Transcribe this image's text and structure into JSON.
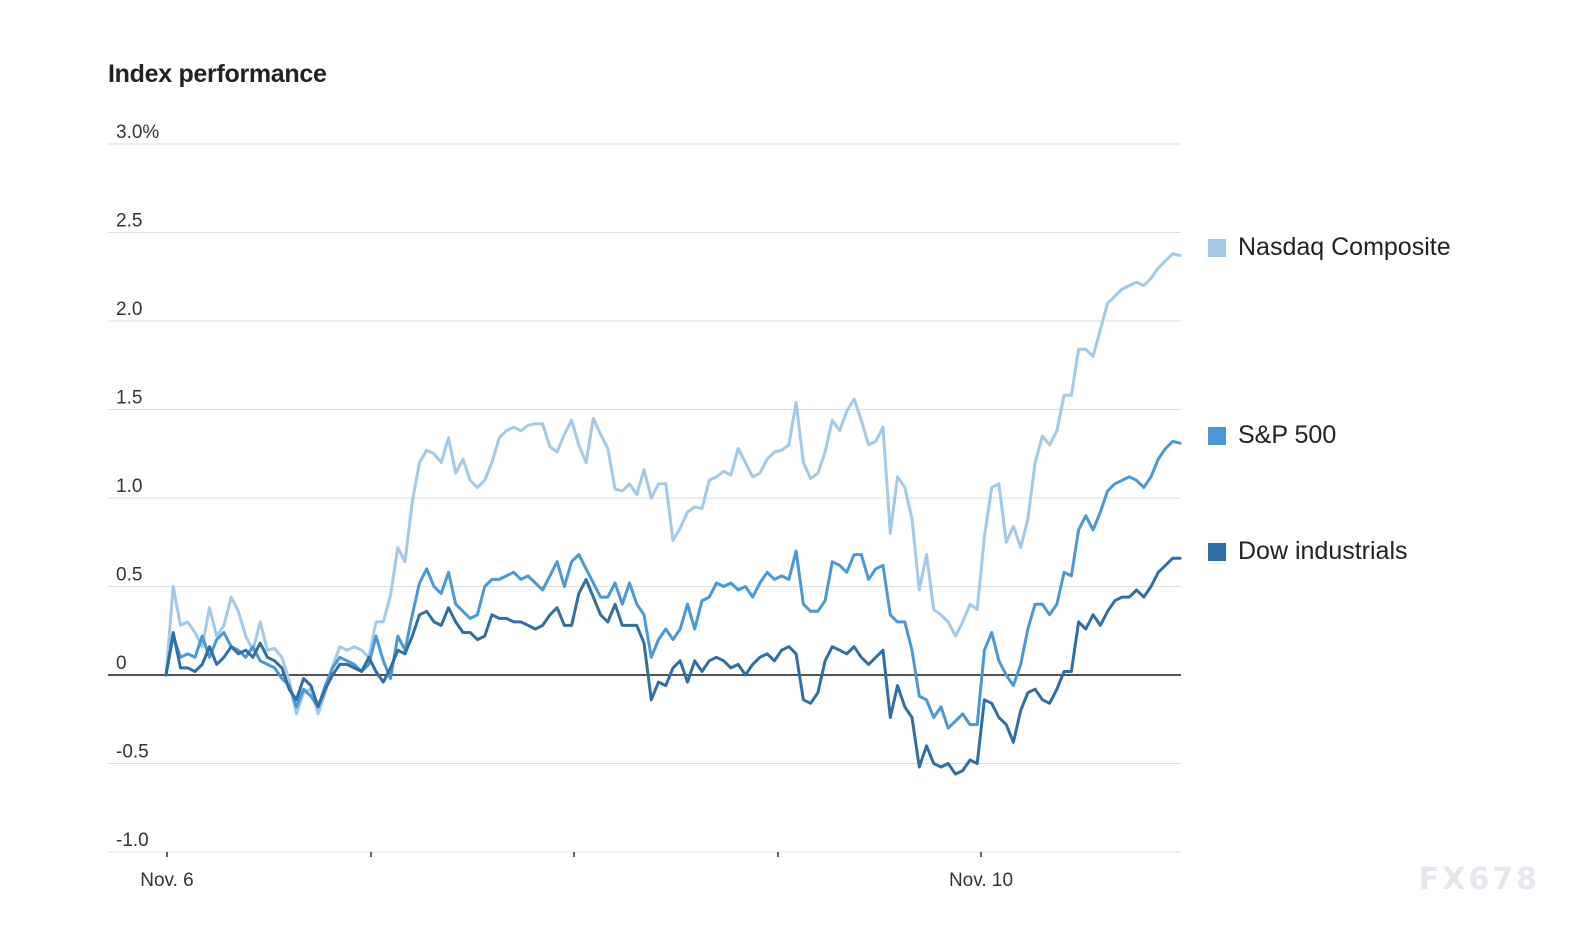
{
  "chart_data": {
    "type": "line",
    "title": "Index performance",
    "xlabel": "",
    "ylabel": "",
    "ylim": [
      -1.0,
      3.0
    ],
    "y_ticks": [
      {
        "value": 3.0,
        "label": "3.0%"
      },
      {
        "value": 2.5,
        "label": "2.5"
      },
      {
        "value": 2.0,
        "label": "2.0"
      },
      {
        "value": 1.5,
        "label": "1.5"
      },
      {
        "value": 1.0,
        "label": "1.0"
      },
      {
        "value": 0.5,
        "label": "0.5"
      },
      {
        "value": 0,
        "label": "0"
      },
      {
        "value": -0.5,
        "label": "-0.5"
      },
      {
        "value": -1.0,
        "label": "-1.0"
      }
    ],
    "x_ticks": [
      "Nov. 6",
      "",
      "",
      "",
      "Nov. 10"
    ],
    "grid": true,
    "legend_position": "right",
    "series": [
      {
        "name": "Nasdaq Composite",
        "color": "#a3c9ea",
        "values": [
          0,
          0.5,
          0.28,
          0.3,
          0.24,
          0.16,
          0.38,
          0.22,
          0.28,
          0.44,
          0.36,
          0.22,
          0.14,
          0.3,
          0.14,
          0.15,
          0.1,
          -0.03,
          -0.22,
          -0.1,
          -0.08,
          -0.22,
          -0.1,
          0.05,
          0.16,
          0.14,
          0.16,
          0.14,
          0.1,
          0.3,
          0.3,
          0.45,
          0.72,
          0.64,
          0.98,
          1.2,
          1.27,
          1.25,
          1.2,
          1.34,
          1.14,
          1.22,
          1.1,
          1.06,
          1.1,
          1.2,
          1.34,
          1.38,
          1.4,
          1.38,
          1.41,
          1.42,
          1.42,
          1.29,
          1.26,
          1.36,
          1.44,
          1.3,
          1.2,
          1.45,
          1.36,
          1.28,
          1.05,
          1.04,
          1.08,
          1.02,
          1.16,
          1.0,
          1.08,
          1.08,
          0.76,
          0.83,
          0.92,
          0.95,
          0.94,
          1.1,
          1.12,
          1.15,
          1.13,
          1.28,
          1.2,
          1.12,
          1.14,
          1.22,
          1.26,
          1.27,
          1.3,
          1.54,
          1.2,
          1.11,
          1.14,
          1.26,
          1.44,
          1.38,
          1.49,
          1.56,
          1.44,
          1.3,
          1.32,
          1.4,
          0.8,
          1.12,
          1.06,
          0.88,
          0.48,
          0.68,
          0.37,
          0.34,
          0.3,
          0.22,
          0.3,
          0.4,
          0.37,
          0.78,
          1.06,
          1.08,
          0.75,
          0.84,
          0.72,
          0.88,
          1.2,
          1.35,
          1.3,
          1.38,
          1.58,
          1.58,
          1.84,
          1.84,
          1.8,
          1.95,
          2.1,
          2.14,
          2.18,
          2.2,
          2.22,
          2.2,
          2.24,
          2.3,
          2.34,
          2.38,
          2.37
        ]
      },
      {
        "name": "S&P 500",
        "color": "#4a98d6",
        "values": [
          0,
          0.22,
          0.1,
          0.12,
          0.1,
          0.22,
          0.1,
          0.2,
          0.24,
          0.16,
          0.14,
          0.1,
          0.16,
          0.08,
          0.06,
          0.04,
          -0.02,
          -0.06,
          -0.18,
          -0.08,
          -0.12,
          -0.18,
          -0.06,
          0.04,
          0.1,
          0.08,
          0.06,
          0.02,
          0.06,
          0.22,
          0.08,
          -0.02,
          0.22,
          0.14,
          0.34,
          0.52,
          0.6,
          0.5,
          0.46,
          0.58,
          0.4,
          0.36,
          0.32,
          0.34,
          0.5,
          0.54,
          0.54,
          0.56,
          0.58,
          0.54,
          0.56,
          0.52,
          0.48,
          0.56,
          0.64,
          0.5,
          0.64,
          0.68,
          0.6,
          0.52,
          0.44,
          0.44,
          0.52,
          0.4,
          0.52,
          0.4,
          0.34,
          0.1,
          0.2,
          0.26,
          0.2,
          0.26,
          0.4,
          0.26,
          0.42,
          0.44,
          0.52,
          0.5,
          0.52,
          0.48,
          0.5,
          0.44,
          0.52,
          0.58,
          0.54,
          0.56,
          0.54,
          0.7,
          0.4,
          0.36,
          0.36,
          0.42,
          0.64,
          0.62,
          0.58,
          0.68,
          0.68,
          0.54,
          0.6,
          0.62,
          0.34,
          0.3,
          0.3,
          0.14,
          -0.12,
          -0.14,
          -0.24,
          -0.18,
          -0.3,
          -0.26,
          -0.22,
          -0.28,
          -0.28,
          0.14,
          0.24,
          0.08,
          0.0,
          -0.06,
          0.06,
          0.26,
          0.4,
          0.4,
          0.34,
          0.4,
          0.58,
          0.56,
          0.82,
          0.9,
          0.82,
          0.92,
          1.04,
          1.08,
          1.1,
          1.12,
          1.1,
          1.06,
          1.12,
          1.22,
          1.28,
          1.32,
          1.31
        ]
      },
      {
        "name": "Dow industrials",
        "color": "#2f6fa6",
        "values": [
          0,
          0.24,
          0.04,
          0.04,
          0.02,
          0.06,
          0.16,
          0.06,
          0.1,
          0.16,
          0.12,
          0.14,
          0.1,
          0.18,
          0.1,
          0.08,
          0.04,
          -0.08,
          -0.14,
          -0.02,
          -0.06,
          -0.18,
          -0.08,
          0.0,
          0.06,
          0.06,
          0.04,
          0.02,
          0.1,
          0.02,
          -0.04,
          0.04,
          0.14,
          0.12,
          0.22,
          0.34,
          0.36,
          0.3,
          0.28,
          0.38,
          0.3,
          0.24,
          0.24,
          0.2,
          0.22,
          0.34,
          0.32,
          0.32,
          0.3,
          0.3,
          0.28,
          0.26,
          0.28,
          0.34,
          0.38,
          0.28,
          0.28,
          0.46,
          0.54,
          0.44,
          0.34,
          0.3,
          0.4,
          0.28,
          0.28,
          0.28,
          0.18,
          -0.14,
          -0.04,
          -0.06,
          0.04,
          0.08,
          -0.04,
          0.08,
          0.02,
          0.08,
          0.1,
          0.08,
          0.04,
          0.06,
          0.0,
          0.06,
          0.1,
          0.12,
          0.08,
          0.14,
          0.16,
          0.12,
          -0.14,
          -0.16,
          -0.1,
          0.08,
          0.16,
          0.14,
          0.12,
          0.16,
          0.1,
          0.06,
          0.1,
          0.14,
          -0.24,
          -0.06,
          -0.18,
          -0.24,
          -0.52,
          -0.4,
          -0.5,
          -0.52,
          -0.5,
          -0.56,
          -0.54,
          -0.48,
          -0.5,
          -0.14,
          -0.16,
          -0.24,
          -0.28,
          -0.38,
          -0.2,
          -0.1,
          -0.08,
          -0.14,
          -0.16,
          -0.08,
          0.02,
          0.02,
          0.3,
          0.26,
          0.34,
          0.28,
          0.36,
          0.42,
          0.44,
          0.44,
          0.48,
          0.44,
          0.5,
          0.58,
          0.62,
          0.66,
          0.66
        ]
      }
    ]
  },
  "watermark": "FX678"
}
